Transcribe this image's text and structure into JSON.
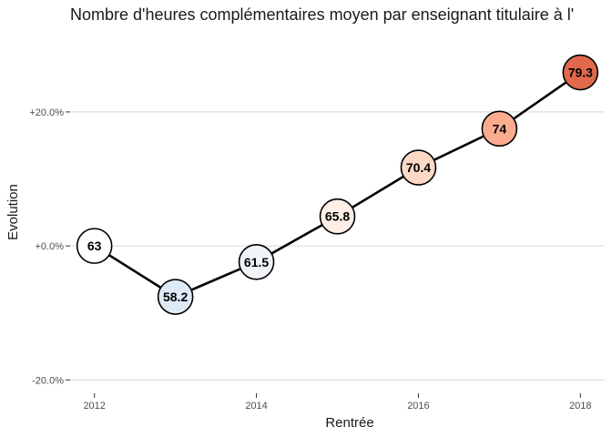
{
  "chart_data": {
    "type": "line",
    "title": "Nombre d'heures complémentaires moyen par enseignant titulaire à l'",
    "xlabel": "Rentrée",
    "ylabel": "Evolution",
    "x": [
      2012,
      2013,
      2014,
      2015,
      2016,
      2017,
      2018
    ],
    "series": [
      {
        "values": [
          0.0,
          -7.6,
          -2.4,
          4.4,
          11.7,
          17.5,
          25.9
        ],
        "point_labels": [
          "63",
          "58.2",
          "61.5",
          "65.8",
          "70.4",
          "74",
          "79.3"
        ],
        "point_colors": [
          "#ffffff",
          "#deebf7",
          "#f0f3f7",
          "#fdeee6",
          "#fdd9c5",
          "#fbac8f",
          "#e0694c"
        ]
      }
    ],
    "x_ticks": [
      2012,
      2014,
      2016,
      2018
    ],
    "x_tick_labels": [
      "2012",
      "2014",
      "2016",
      "2018"
    ],
    "y_ticks": [
      -20,
      0,
      20
    ],
    "y_tick_labels": [
      "-20.0%",
      "+0.0%",
      "+20.0%"
    ],
    "xlim": [
      2011.7,
      2018.3
    ],
    "ylim": [
      -22,
      31
    ],
    "grid": "horizontal",
    "legend": "none"
  }
}
